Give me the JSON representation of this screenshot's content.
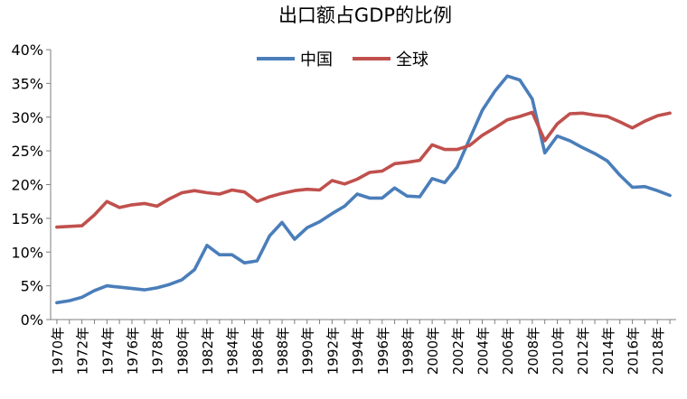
{
  "chart_data": {
    "type": "line",
    "title": "出口额占GDP的比例",
    "xlabel": "",
    "ylabel": "",
    "ylim": [
      0,
      40
    ],
    "y_ticks": [
      "0%",
      "5%",
      "10%",
      "15%",
      "20%",
      "25%",
      "30%",
      "35%",
      "40%"
    ],
    "y_tick_values": [
      0,
      5,
      10,
      15,
      20,
      25,
      30,
      35,
      40
    ],
    "x_tick_labels": [
      "1970年",
      "1972年",
      "1974年",
      "1976年",
      "1978年",
      "1980年",
      "1982年",
      "1984年",
      "1986年",
      "1988年",
      "1990年",
      "1992年",
      "1994年",
      "1996年",
      "1998年",
      "2000年",
      "2002年",
      "2004年",
      "2006年",
      "2008年",
      "2010年",
      "2012年",
      "2014年",
      "2016年",
      "2018年"
    ],
    "x_tick_years": [
      1970,
      1972,
      1974,
      1976,
      1978,
      1980,
      1982,
      1984,
      1986,
      1988,
      1990,
      1992,
      1994,
      1996,
      1998,
      2000,
      2002,
      2004,
      2006,
      2008,
      2010,
      2012,
      2014,
      2016,
      2018
    ],
    "x": [
      1970,
      1971,
      1972,
      1973,
      1974,
      1975,
      1976,
      1977,
      1978,
      1979,
      1980,
      1981,
      1982,
      1983,
      1984,
      1985,
      1986,
      1987,
      1988,
      1989,
      1990,
      1991,
      1992,
      1993,
      1994,
      1995,
      1996,
      1997,
      1998,
      1999,
      2000,
      2001,
      2002,
      2003,
      2004,
      2005,
      2006,
      2007,
      2008,
      2009,
      2010,
      2011,
      2012,
      2013,
      2014,
      2015,
      2016,
      2017,
      2018,
      2019
    ],
    "grid": false,
    "legend_position": "top-center",
    "series": [
      {
        "name": "中国",
        "color": "#4a7eba",
        "values": [
          2.5,
          2.8,
          3.3,
          4.3,
          5.0,
          4.8,
          4.6,
          4.4,
          4.7,
          5.2,
          5.9,
          7.4,
          11.0,
          9.6,
          9.6,
          8.4,
          8.7,
          12.4,
          14.4,
          11.9,
          13.6,
          14.5,
          15.7,
          16.8,
          18.6,
          18.0,
          18.0,
          19.5,
          18.3,
          18.2,
          20.9,
          20.3,
          22.6,
          26.8,
          31.0,
          33.8,
          36.1,
          35.5,
          32.7,
          24.7,
          27.2,
          26.5,
          25.5,
          24.6,
          23.5,
          21.4,
          19.6,
          19.7,
          19.1,
          18.4
        ]
      },
      {
        "name": "全球",
        "color": "#c0504d",
        "values": [
          13.7,
          13.8,
          13.9,
          15.5,
          17.5,
          16.6,
          17.0,
          17.2,
          16.8,
          17.9,
          18.8,
          19.1,
          18.8,
          18.6,
          19.2,
          18.9,
          17.5,
          18.2,
          18.7,
          19.1,
          19.3,
          19.2,
          20.6,
          20.1,
          20.8,
          21.8,
          22.0,
          23.1,
          23.3,
          23.6,
          25.9,
          25.2,
          25.2,
          25.8,
          27.3,
          28.4,
          29.6,
          30.1,
          30.7,
          26.5,
          29.0,
          30.5,
          30.6,
          30.3,
          30.1,
          29.3,
          28.4,
          29.4,
          30.2,
          30.6
        ]
      }
    ]
  }
}
